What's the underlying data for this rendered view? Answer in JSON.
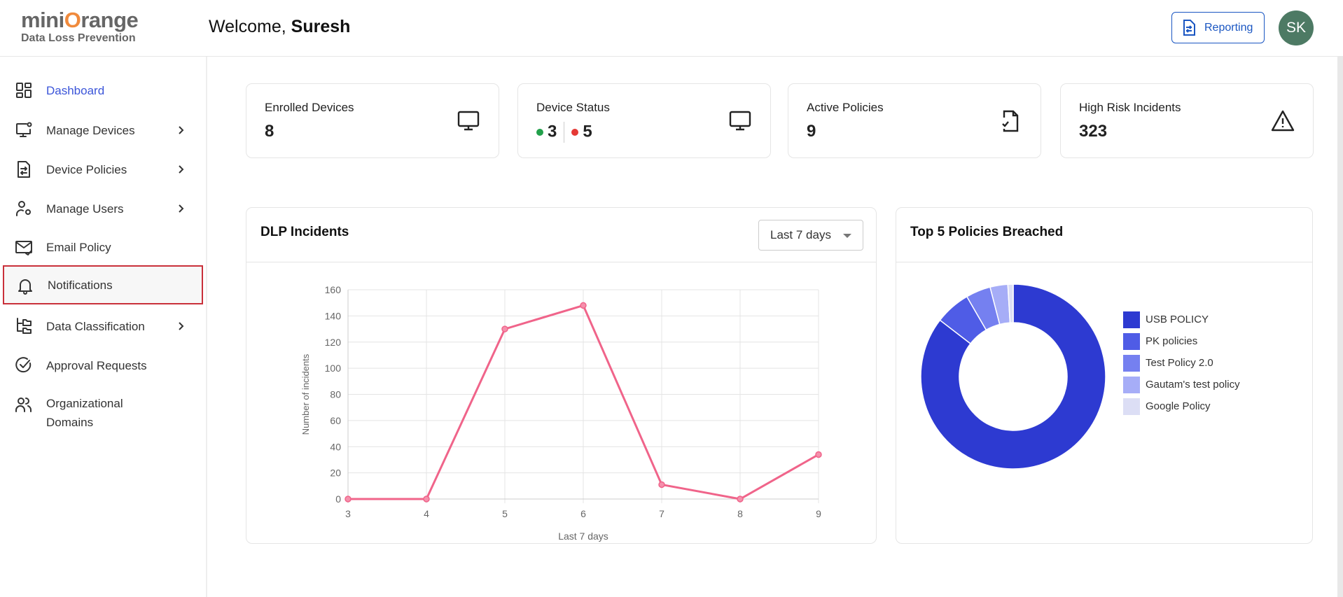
{
  "brand": {
    "logo_text": "miniOrange",
    "product": "Data Loss Prevention"
  },
  "header": {
    "welcome_prefix": "Welcome,",
    "user_name": "Suresh",
    "reporting_label": "Reporting",
    "avatar_initials": "SK",
    "avatar_color": "#4d7a64"
  },
  "sidebar": {
    "items": [
      {
        "label": "Dashboard",
        "icon": "dashboard-icon",
        "active": true
      },
      {
        "label": "Manage Devices",
        "icon": "monitor-settings-icon",
        "chevron": true
      },
      {
        "label": "Device Policies",
        "icon": "policy-document-icon",
        "chevron": true
      },
      {
        "label": "Manage Users",
        "icon": "user-gear-icon",
        "chevron": true
      },
      {
        "label": "Email Policy",
        "icon": "mail-check-icon"
      },
      {
        "label": "Notifications",
        "icon": "bell-icon",
        "highlighted": true
      },
      {
        "label": "Data Classification",
        "icon": "folder-tree-icon",
        "chevron": true
      },
      {
        "label": "Approval Requests",
        "icon": "check-circle-icon"
      },
      {
        "label": "Organizational Domains",
        "icon": "users-icon"
      }
    ]
  },
  "cards": [
    {
      "title": "Enrolled Devices",
      "value": "8",
      "icon": "monitor-icon"
    },
    {
      "title": "Device Status",
      "online": "3",
      "offline": "5",
      "online_color": "#22a04b",
      "offline_color": "#e53935",
      "icon": "monitor-icon"
    },
    {
      "title": "Active Policies",
      "value": "9",
      "icon": "file-check-icon"
    },
    {
      "title": "High Risk Incidents",
      "value": "323",
      "icon": "warning-icon"
    }
  ],
  "incidents_panel": {
    "title": "DLP Incidents",
    "range_selected": "Last 7 days"
  },
  "policies_panel": {
    "title": "Top 5 Policies Breached"
  },
  "chart_data": [
    {
      "type": "line",
      "xlabel": "Last 7 days",
      "ylabel": "Number of incidents",
      "x": [
        "3",
        "4",
        "5",
        "6",
        "7",
        "8",
        "9"
      ],
      "values": [
        0,
        0,
        130,
        148,
        11,
        0,
        34
      ],
      "yticks": [
        "0",
        "20",
        "40",
        "60",
        "80",
        "100",
        "120",
        "140",
        "160"
      ],
      "ylim": [
        0,
        160
      ],
      "grid": true,
      "color": "#f0648a"
    },
    {
      "type": "pie",
      "donut": true,
      "legend": "right",
      "labels": [
        "USB POLICY",
        "PK policies",
        "Test Policy 2.0",
        "Gautam's test policy",
        "Google Policy"
      ],
      "values": [
        276,
        20,
        14,
        10,
        3
      ],
      "colors": [
        "#2d3ad1",
        "#4f5ce6",
        "#7580f0",
        "#a6adf7",
        "#dcdef5"
      ]
    }
  ]
}
